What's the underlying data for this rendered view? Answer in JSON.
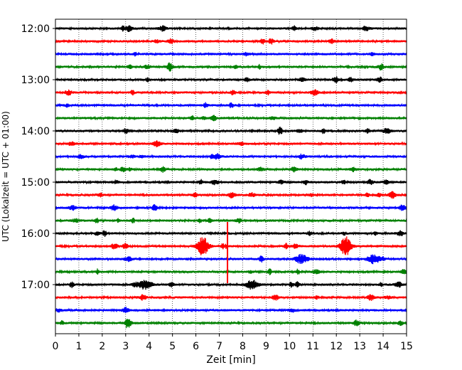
{
  "chart_data": {
    "type": "line",
    "title": "",
    "xlabel": "Zeit  [min]",
    "ylabel": "UTC (Lokalzeit = UTC + 01:00)",
    "xlim": [
      0,
      15
    ],
    "x_ticks": [
      "0",
      "1",
      "2",
      "3",
      "4",
      "5",
      "6",
      "7",
      "8",
      "9",
      "10",
      "11",
      "12",
      "13",
      "14",
      "15"
    ],
    "y_ticks": [
      "12:00",
      "13:00",
      "14:00",
      "15:00",
      "16:00",
      "17:00"
    ],
    "start_time": "12:00",
    "trace_interval_min": 15,
    "trace_count": 24,
    "colors": [
      "#000000",
      "#ff0000",
      "#0000ff",
      "#008000"
    ],
    "grid": "vertical dotted lines at each minute",
    "events": [
      {
        "trace": 17,
        "x": 6.3,
        "amplitude": "large"
      },
      {
        "trace": 17,
        "x": 12.4,
        "amplitude": "large"
      },
      {
        "trace": 18,
        "x": 13.6,
        "amplitude": "medium"
      },
      {
        "trace": 18,
        "x": 10.5,
        "amplitude": "medium"
      },
      {
        "trace": 20,
        "x": 8.4,
        "amplitude": "medium"
      },
      {
        "trace": 20,
        "x": 3.8,
        "amplitude": "medium"
      }
    ],
    "spike": {
      "x": 7.35,
      "from_trace": 15,
      "to_trace": 20
    }
  }
}
